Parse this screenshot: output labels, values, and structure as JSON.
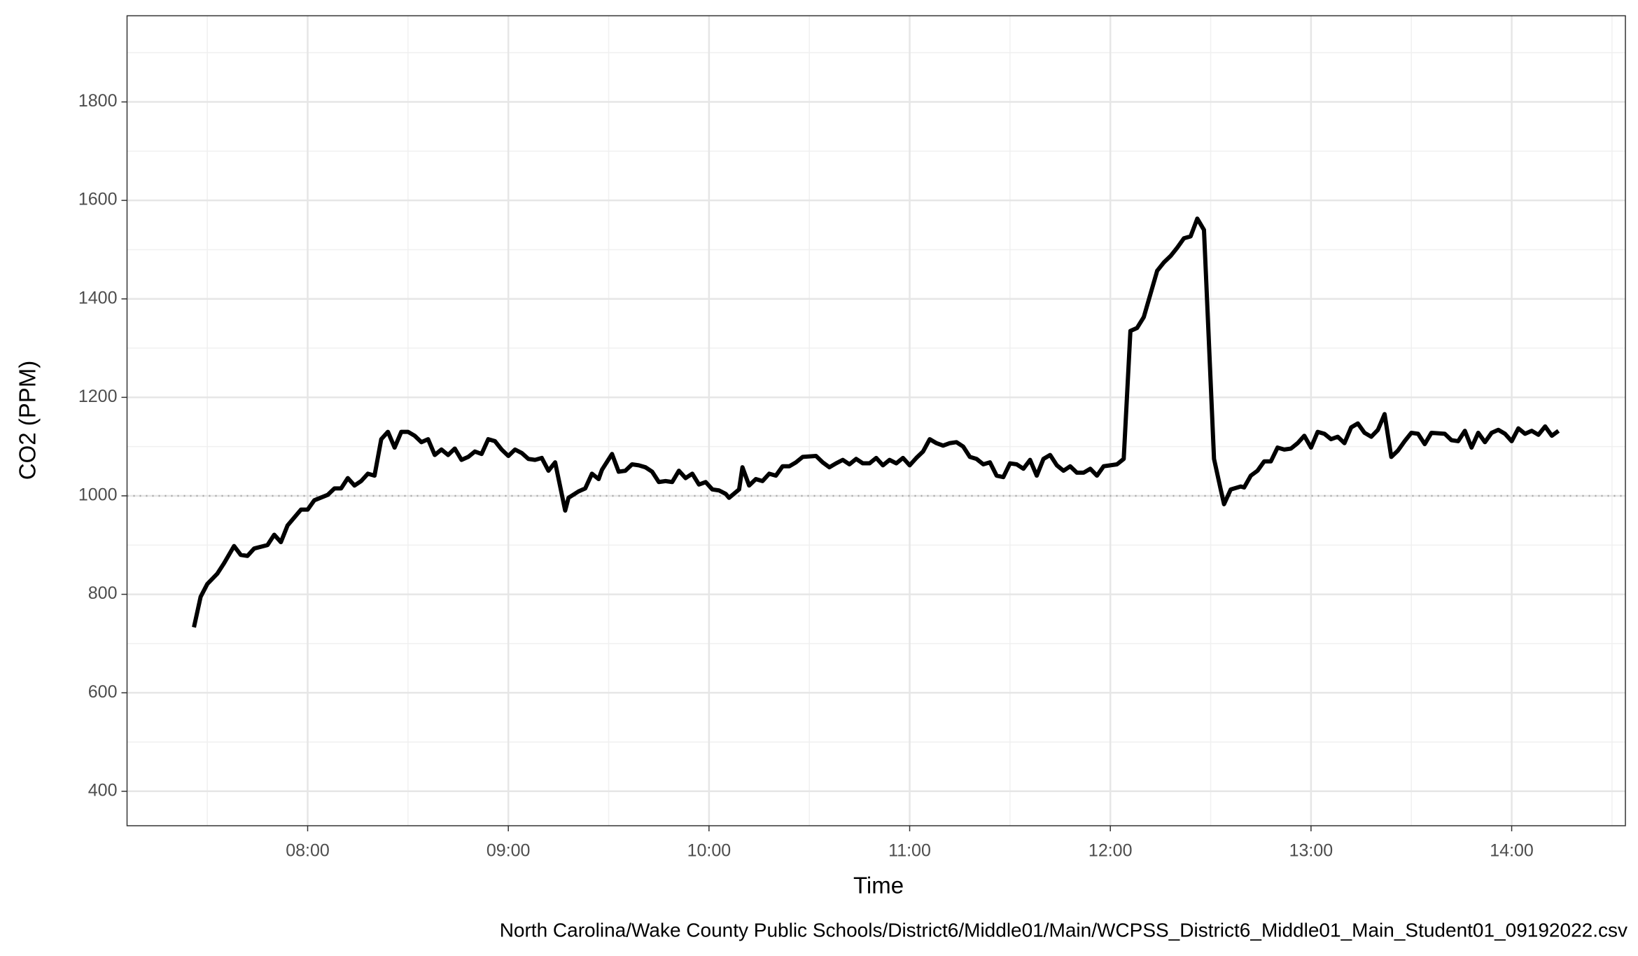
{
  "chart_data": {
    "type": "line",
    "y_label": "CO2 (PPM)",
    "x_label": "Time",
    "caption": "North Carolina/Wake County Public Schools/District6/Middle01/Main/WCPSS_District6_Middle01_Main_Student01_09192022.csv",
    "x": [
      446,
      448,
      450,
      453,
      455,
      458,
      460,
      462,
      464,
      468,
      470,
      472,
      474,
      478,
      480,
      482,
      486,
      488,
      490,
      492,
      494,
      496,
      498,
      500,
      502,
      504,
      506,
      508,
      510,
      512,
      514,
      516,
      518,
      520,
      522,
      524,
      526,
      528,
      530,
      532,
      534,
      536,
      538,
      540,
      542,
      544,
      546,
      548,
      550,
      552,
      554,
      557,
      558,
      561,
      563,
      565,
      567,
      568,
      571,
      573,
      575,
      577,
      579,
      581,
      583,
      585,
      587,
      589,
      591,
      593,
      595,
      597,
      599,
      601,
      603,
      605,
      606,
      609,
      610,
      612,
      614,
      616,
      618,
      620,
      622,
      624,
      626,
      628,
      632,
      634,
      636,
      638,
      640,
      642,
      644,
      646,
      648,
      650,
      652,
      654,
      656,
      658,
      660,
      662,
      664,
      666,
      668,
      670,
      672,
      674,
      676,
      678,
      680,
      682,
      684,
      686,
      688,
      690,
      692,
      694,
      696,
      698,
      700,
      702,
      704,
      706,
      708,
      710,
      712,
      714,
      716,
      718,
      722,
      724,
      726,
      728,
      730,
      732,
      734,
      736,
      738,
      740,
      742,
      744,
      746,
      748,
      751,
      753,
      754,
      756,
      759,
      760,
      762,
      764,
      766,
      768,
      770,
      772,
      774,
      776,
      778,
      780,
      782,
      784,
      786,
      788,
      790,
      792,
      794,
      796,
      798,
      800,
      802,
      804,
      806,
      808,
      810,
      812,
      814,
      816,
      820,
      822,
      824,
      826,
      828,
      830,
      832,
      834,
      836,
      838,
      840,
      842,
      844,
      846,
      848,
      850,
      852,
      854
    ],
    "series": [
      {
        "name": "CO2",
        "color": "#000000",
        "values": [
          733,
          795,
          821,
          842,
          863,
          898,
          880,
          878,
          893,
          900,
          921,
          906,
          940,
          972,
          972,
          991,
          1002,
          1015,
          1015,
          1036,
          1021,
          1030,
          1045,
          1041,
          1115,
          1130,
          1098,
          1130,
          1130,
          1122,
          1109,
          1115,
          1083,
          1094,
          1083,
          1096,
          1073,
          1079,
          1090,
          1085,
          1115,
          1111,
          1094,
          1081,
          1094,
          1087,
          1075,
          1073,
          1077,
          1051,
          1068,
          970,
          996,
          1009,
          1015,
          1045,
          1034,
          1053,
          1085,
          1049,
          1051,
          1064,
          1062,
          1058,
          1049,
          1028,
          1030,
          1028,
          1051,
          1036,
          1045,
          1023,
          1028,
          1013,
          1011,
          1004,
          996,
          1013,
          1058,
          1021,
          1034,
          1030,
          1045,
          1041,
          1060,
          1060,
          1068,
          1079,
          1081,
          1068,
          1058,
          1066,
          1073,
          1064,
          1075,
          1066,
          1066,
          1077,
          1062,
          1073,
          1066,
          1077,
          1062,
          1077,
          1090,
          1115,
          1107,
          1102,
          1107,
          1109,
          1100,
          1079,
          1075,
          1064,
          1068,
          1041,
          1038,
          1066,
          1064,
          1055,
          1073,
          1041,
          1075,
          1083,
          1062,
          1051,
          1060,
          1047,
          1047,
          1055,
          1041,
          1060,
          1064,
          1075,
          1335,
          1341,
          1363,
          1410,
          1457,
          1474,
          1487,
          1504,
          1523,
          1527,
          1563,
          1540,
          1075,
          1013,
          983,
          1013,
          1019,
          1017,
          1041,
          1051,
          1070,
          1070,
          1098,
          1094,
          1096,
          1107,
          1122,
          1098,
          1130,
          1126,
          1115,
          1120,
          1107,
          1139,
          1147,
          1128,
          1120,
          1134,
          1166,
          1079,
          1092,
          1111,
          1128,
          1126,
          1105,
          1128,
          1126,
          1113,
          1111,
          1132,
          1098,
          1128,
          1109,
          1128,
          1134,
          1126,
          1111,
          1137,
          1126,
          1132,
          1124,
          1141,
          1122,
          1132
        ]
      }
    ],
    "xlim": [
      426,
      874
    ],
    "xticks": [
      {
        "value": 480,
        "label": "08:00"
      },
      {
        "value": 540,
        "label": "09:00"
      },
      {
        "value": 600,
        "label": "10:00"
      },
      {
        "value": 660,
        "label": "11:00"
      },
      {
        "value": 720,
        "label": "12:00"
      },
      {
        "value": 780,
        "label": "13:00"
      },
      {
        "value": 840,
        "label": "14:00"
      }
    ],
    "ylim": [
      330,
      1975
    ],
    "yticks": [
      400,
      600,
      800,
      1000,
      1200,
      1400,
      1600,
      1800
    ],
    "hline": 1000,
    "grid": true
  }
}
